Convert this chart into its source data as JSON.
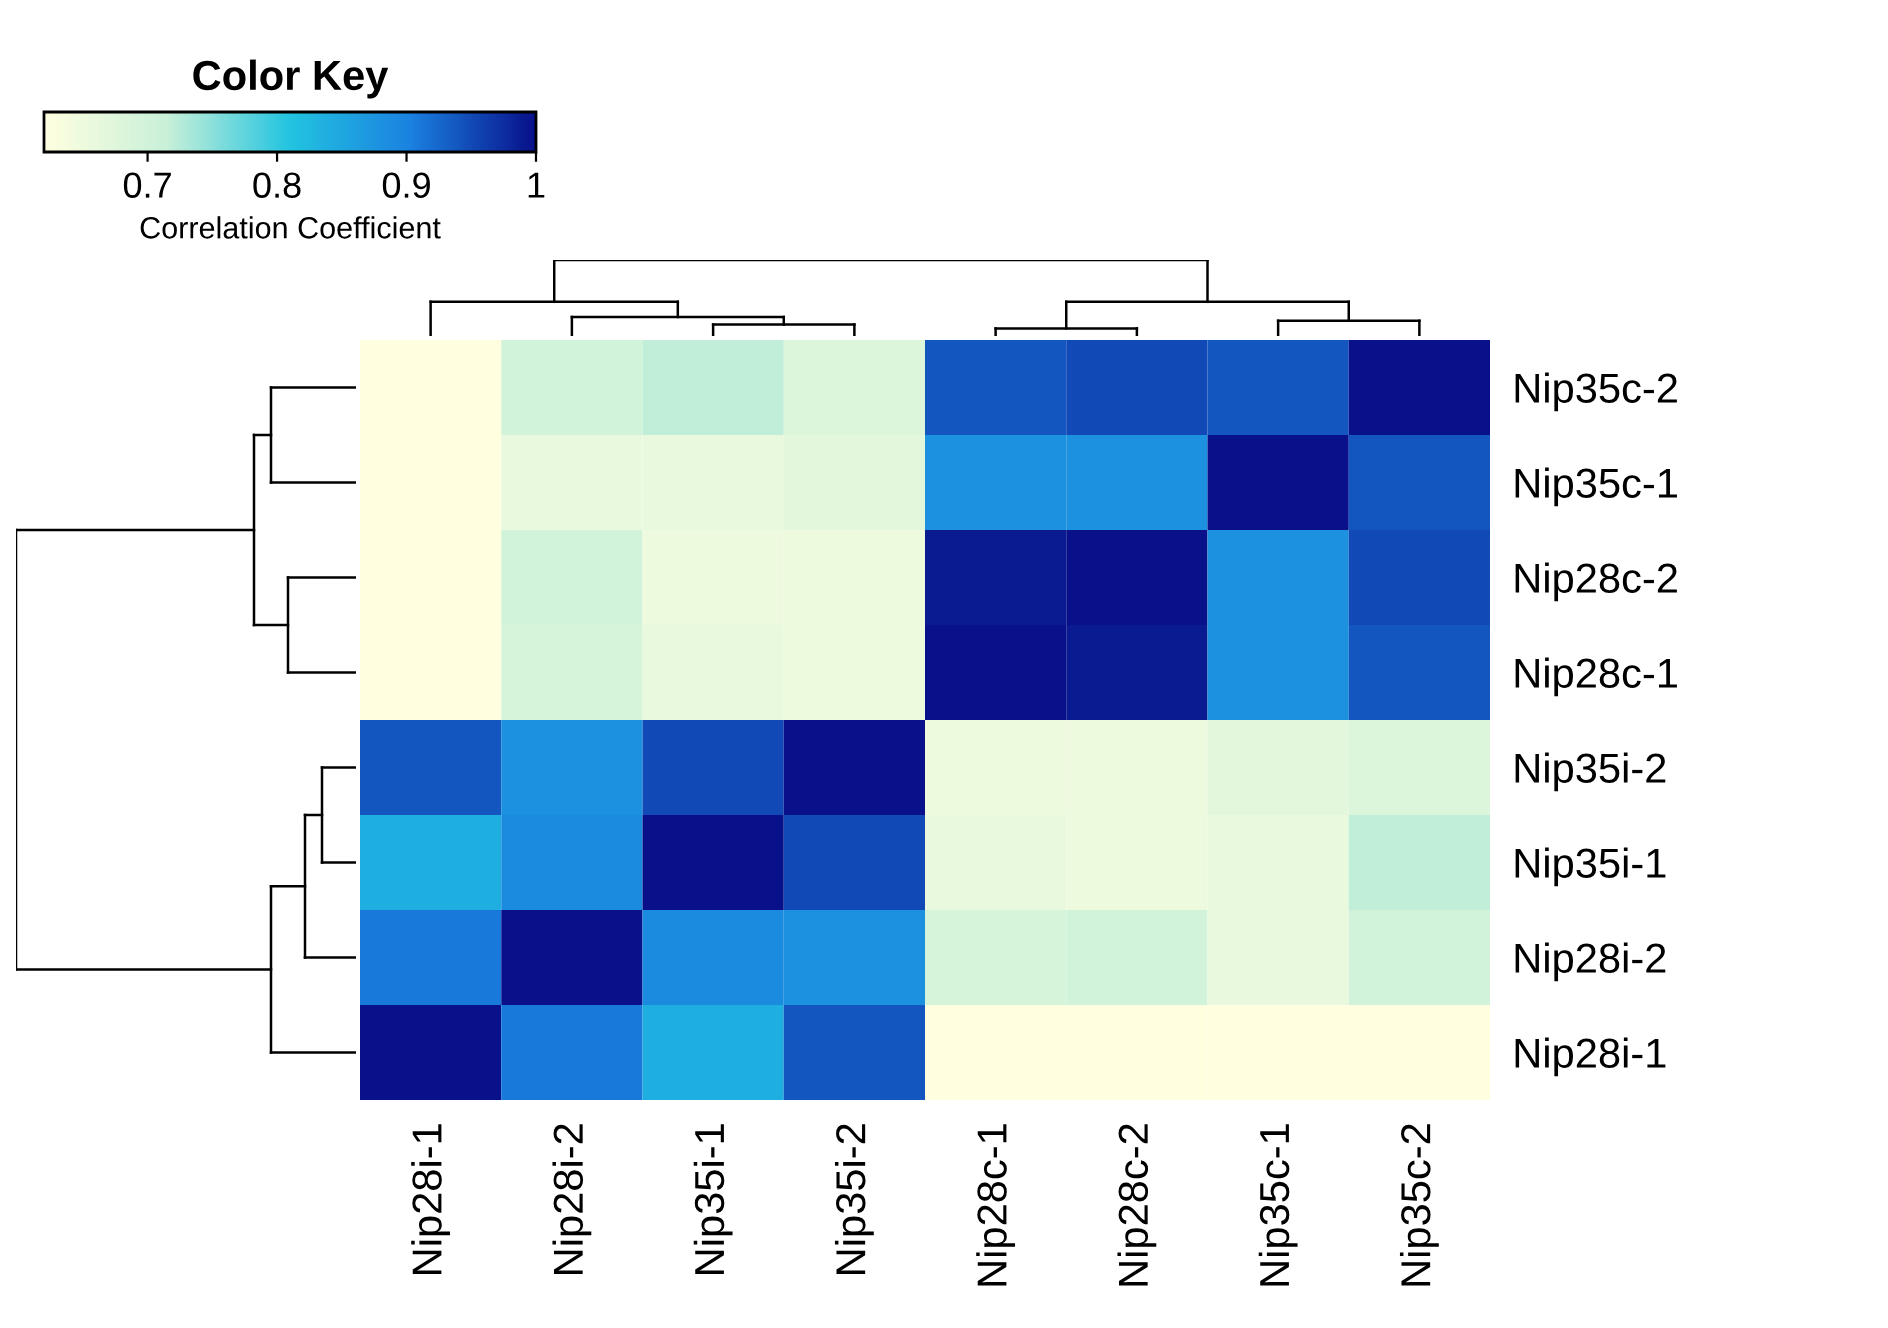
{
  "chart_data": {
    "type": "heatmap",
    "title": "Color Key",
    "clabel": "Correlation Coefficient",
    "categories": [
      "Nip28i-1",
      "Nip28i-2",
      "Nip35i-1",
      "Nip35i-2",
      "Nip28c-1",
      "Nip28c-2",
      "Nip35c-1",
      "Nip35c-2"
    ],
    "y_categories": [
      "Nip35c-2",
      "Nip35c-1",
      "Nip28c-2",
      "Nip28c-1",
      "Nip35i-2",
      "Nip35i-1",
      "Nip28i-2",
      "Nip28i-1"
    ],
    "cells": [
      [
        0.62,
        0.7,
        0.72,
        0.68,
        0.94,
        0.95,
        0.94,
        1.0
      ],
      [
        0.62,
        0.66,
        0.66,
        0.67,
        0.88,
        0.88,
        1.0,
        0.94
      ],
      [
        0.62,
        0.7,
        0.65,
        0.65,
        0.99,
        1.0,
        0.88,
        0.95
      ],
      [
        0.62,
        0.69,
        0.66,
        0.65,
        1.0,
        0.99,
        0.88,
        0.94
      ],
      [
        0.94,
        0.88,
        0.95,
        1.0,
        0.65,
        0.65,
        0.67,
        0.68
      ],
      [
        0.84,
        0.89,
        1.0,
        0.95,
        0.66,
        0.65,
        0.66,
        0.72
      ],
      [
        0.91,
        1.0,
        0.89,
        0.88,
        0.69,
        0.7,
        0.66,
        0.7
      ],
      [
        1.0,
        0.91,
        0.84,
        0.94,
        0.62,
        0.62,
        0.62,
        0.62
      ]
    ],
    "clim": [
      0.62,
      1.0
    ],
    "cticks": [
      0.7,
      0.8,
      0.9,
      1
    ]
  }
}
